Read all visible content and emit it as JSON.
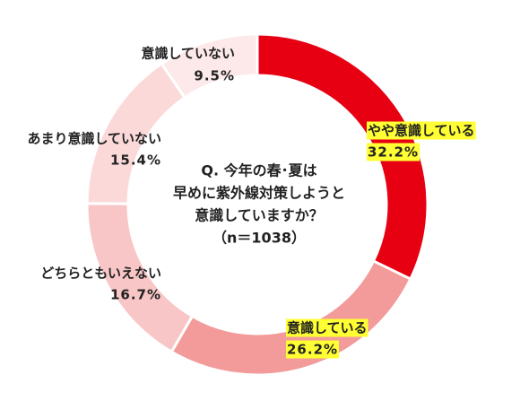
{
  "chart_data": {
    "type": "donut",
    "center_text": [
      "Q. 今年の春･夏は",
      "早めに紫外線対策しようと",
      "意識していますか？",
      "（n＝1038）"
    ],
    "categories": [
      "やや意識している",
      "意識している",
      "どちらともいえない",
      "あまり意識していない",
      "意識していない"
    ],
    "values": [
      32.2,
      26.2,
      16.7,
      15.4,
      9.5
    ],
    "value_labels": [
      "32.2%",
      "26.2%",
      "16.7%",
      "15.4%",
      "9.5%"
    ],
    "colors": [
      "#e60012",
      "#f39a9a",
      "#f8c6c6",
      "#fcd9d9",
      "#fde9e9"
    ],
    "highlighted": [
      true,
      true,
      false,
      false,
      false
    ],
    "highlight_color": "#ffff33"
  }
}
